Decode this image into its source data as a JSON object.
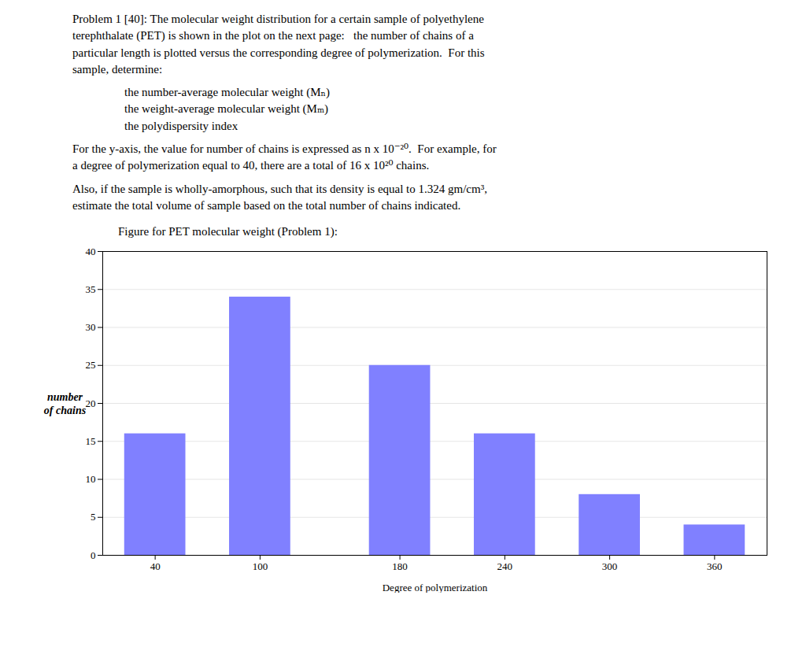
{
  "chart_data": {
    "type": "bar",
    "title": "Figure for PET molecular weight (Problem 1):",
    "annotations": [
      [
        "Problem 1 [40]: The molecular weight distribution for a certain sample of polyethylene",
        "terephthalate (PET) is shown in the plot on the next page:   the number of chains of a",
        "particular length is plotted versus the corresponding degree of polymerization.  For this",
        "sample, determine:"
      ],
      [
        "the number-average molecular weight (Mₙ)",
        "the weight-average molecular weight (Mₘ)",
        "the polydispersity index"
      ],
      [
        "For the y-axis, the value for number of chains is expressed as n x 10⁻²⁰.  For example, for",
        "a degree of polymerization equal to 40, there are a total of 16 x 10²⁰ chains."
      ],
      [
        "Also, if the sample is wholly-amorphous, such that its density is equal to 1.324 gm/cm³,",
        "estimate the total volume of sample based on the total number of chains indicated."
      ]
    ],
    "x": [
      40,
      100,
      180,
      240,
      300,
      360
    ],
    "values": [
      16,
      34,
      25,
      16,
      8,
      4
    ],
    "color": "#8080ff",
    "xlim": [
      10,
      390
    ],
    "xticks": [
      40,
      100,
      180,
      240,
      300,
      360
    ],
    "ylim": [
      0,
      40
    ],
    "yticks": [
      0,
      5,
      10,
      15,
      20,
      25,
      30,
      35,
      40
    ],
    "grid": true,
    "xlabel": "Degree of polymerization",
    "ylabel": "number\nof chains"
  }
}
